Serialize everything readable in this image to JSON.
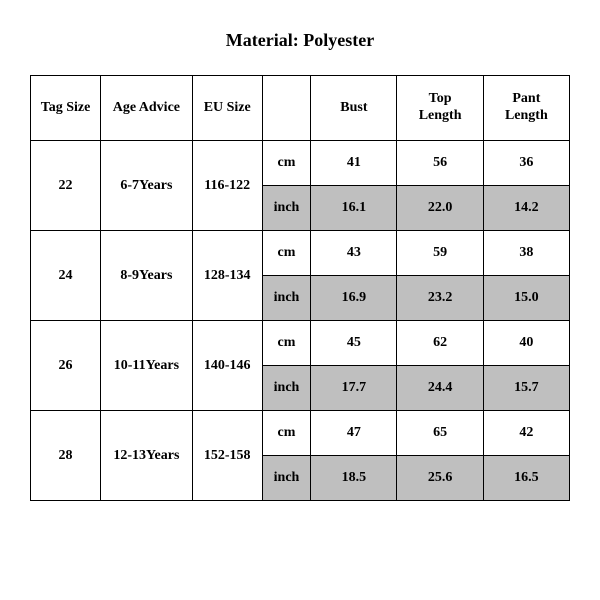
{
  "title": "Material: Polyester",
  "table": {
    "columns": [
      "Tag Size",
      "Age Advice",
      "EU Size",
      "",
      "Bust",
      "Top Length",
      "Pant Length"
    ],
    "rows": [
      {
        "tag": "22",
        "age": "6-7Years",
        "eu": "116-122",
        "cm": [
          "41",
          "56",
          "36"
        ],
        "inch": [
          "16.1",
          "22.0",
          "14.2"
        ]
      },
      {
        "tag": "24",
        "age": "8-9Years",
        "eu": "128-134",
        "cm": [
          "43",
          "59",
          "38"
        ],
        "inch": [
          "16.9",
          "23.2",
          "15.0"
        ]
      },
      {
        "tag": "26",
        "age": "10-11Years",
        "eu": "140-146",
        "cm": [
          "45",
          "62",
          "40"
        ],
        "inch": [
          "17.7",
          "24.4",
          "15.7"
        ]
      },
      {
        "tag": "28",
        "age": "12-13Years",
        "eu": "152-158",
        "cm": [
          "47",
          "65",
          "42"
        ],
        "inch": [
          "18.5",
          "25.6",
          "16.5"
        ]
      }
    ],
    "unit_labels": {
      "cm": "cm",
      "inch": "inch"
    },
    "colors": {
      "background": "#ffffff",
      "text": "#000000",
      "border": "#000000",
      "shaded_cell": "#bfbfbf"
    },
    "fonts": {
      "family": "Times New Roman",
      "title_size_pt": 18,
      "cell_size_pt": 14,
      "weight": "bold"
    }
  }
}
